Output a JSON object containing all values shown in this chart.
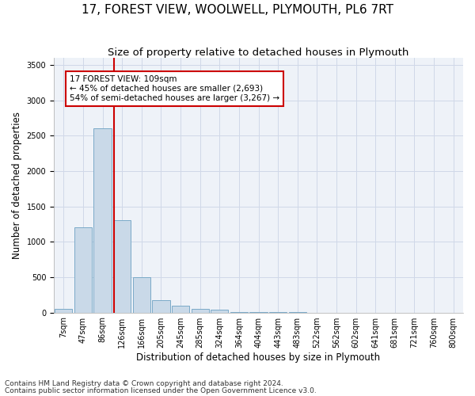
{
  "title": "17, FOREST VIEW, WOOLWELL, PLYMOUTH, PL6 7RT",
  "subtitle": "Size of property relative to detached houses in Plymouth",
  "xlabel": "Distribution of detached houses by size in Plymouth",
  "ylabel": "Number of detached properties",
  "annotation_line1": "17 FOREST VIEW: 109sqm",
  "annotation_line2": "← 45% of detached houses are smaller (2,693)",
  "annotation_line3": "54% of semi-detached houses are larger (3,267) →",
  "property_size_sqm": 109,
  "footer_line1": "Contains HM Land Registry data © Crown copyright and database right 2024.",
  "footer_line2": "Contains public sector information licensed under the Open Government Licence v3.0.",
  "bin_labels": [
    "7sqm",
    "47sqm",
    "86sqm",
    "126sqm",
    "166sqm",
    "205sqm",
    "245sqm",
    "285sqm",
    "324sqm",
    "364sqm",
    "404sqm",
    "443sqm",
    "483sqm",
    "522sqm",
    "562sqm",
    "602sqm",
    "641sqm",
    "681sqm",
    "721sqm",
    "760sqm",
    "800sqm"
  ],
  "bar_values": [
    50,
    1200,
    2600,
    1300,
    500,
    175,
    100,
    50,
    40,
    10,
    5,
    5,
    2,
    0,
    0,
    0,
    0,
    0,
    0,
    0,
    0
  ],
  "bar_color": "#c9d9e8",
  "bar_edge_color": "#7aaac8",
  "grid_color": "#d0d8e8",
  "background_color": "#eef2f8",
  "vline_color": "#cc0000",
  "ylim": [
    0,
    3600
  ],
  "title_fontsize": 11,
  "subtitle_fontsize": 9.5,
  "axis_label_fontsize": 8.5,
  "tick_fontsize": 7,
  "annotation_fontsize": 7.5,
  "footer_fontsize": 6.5
}
